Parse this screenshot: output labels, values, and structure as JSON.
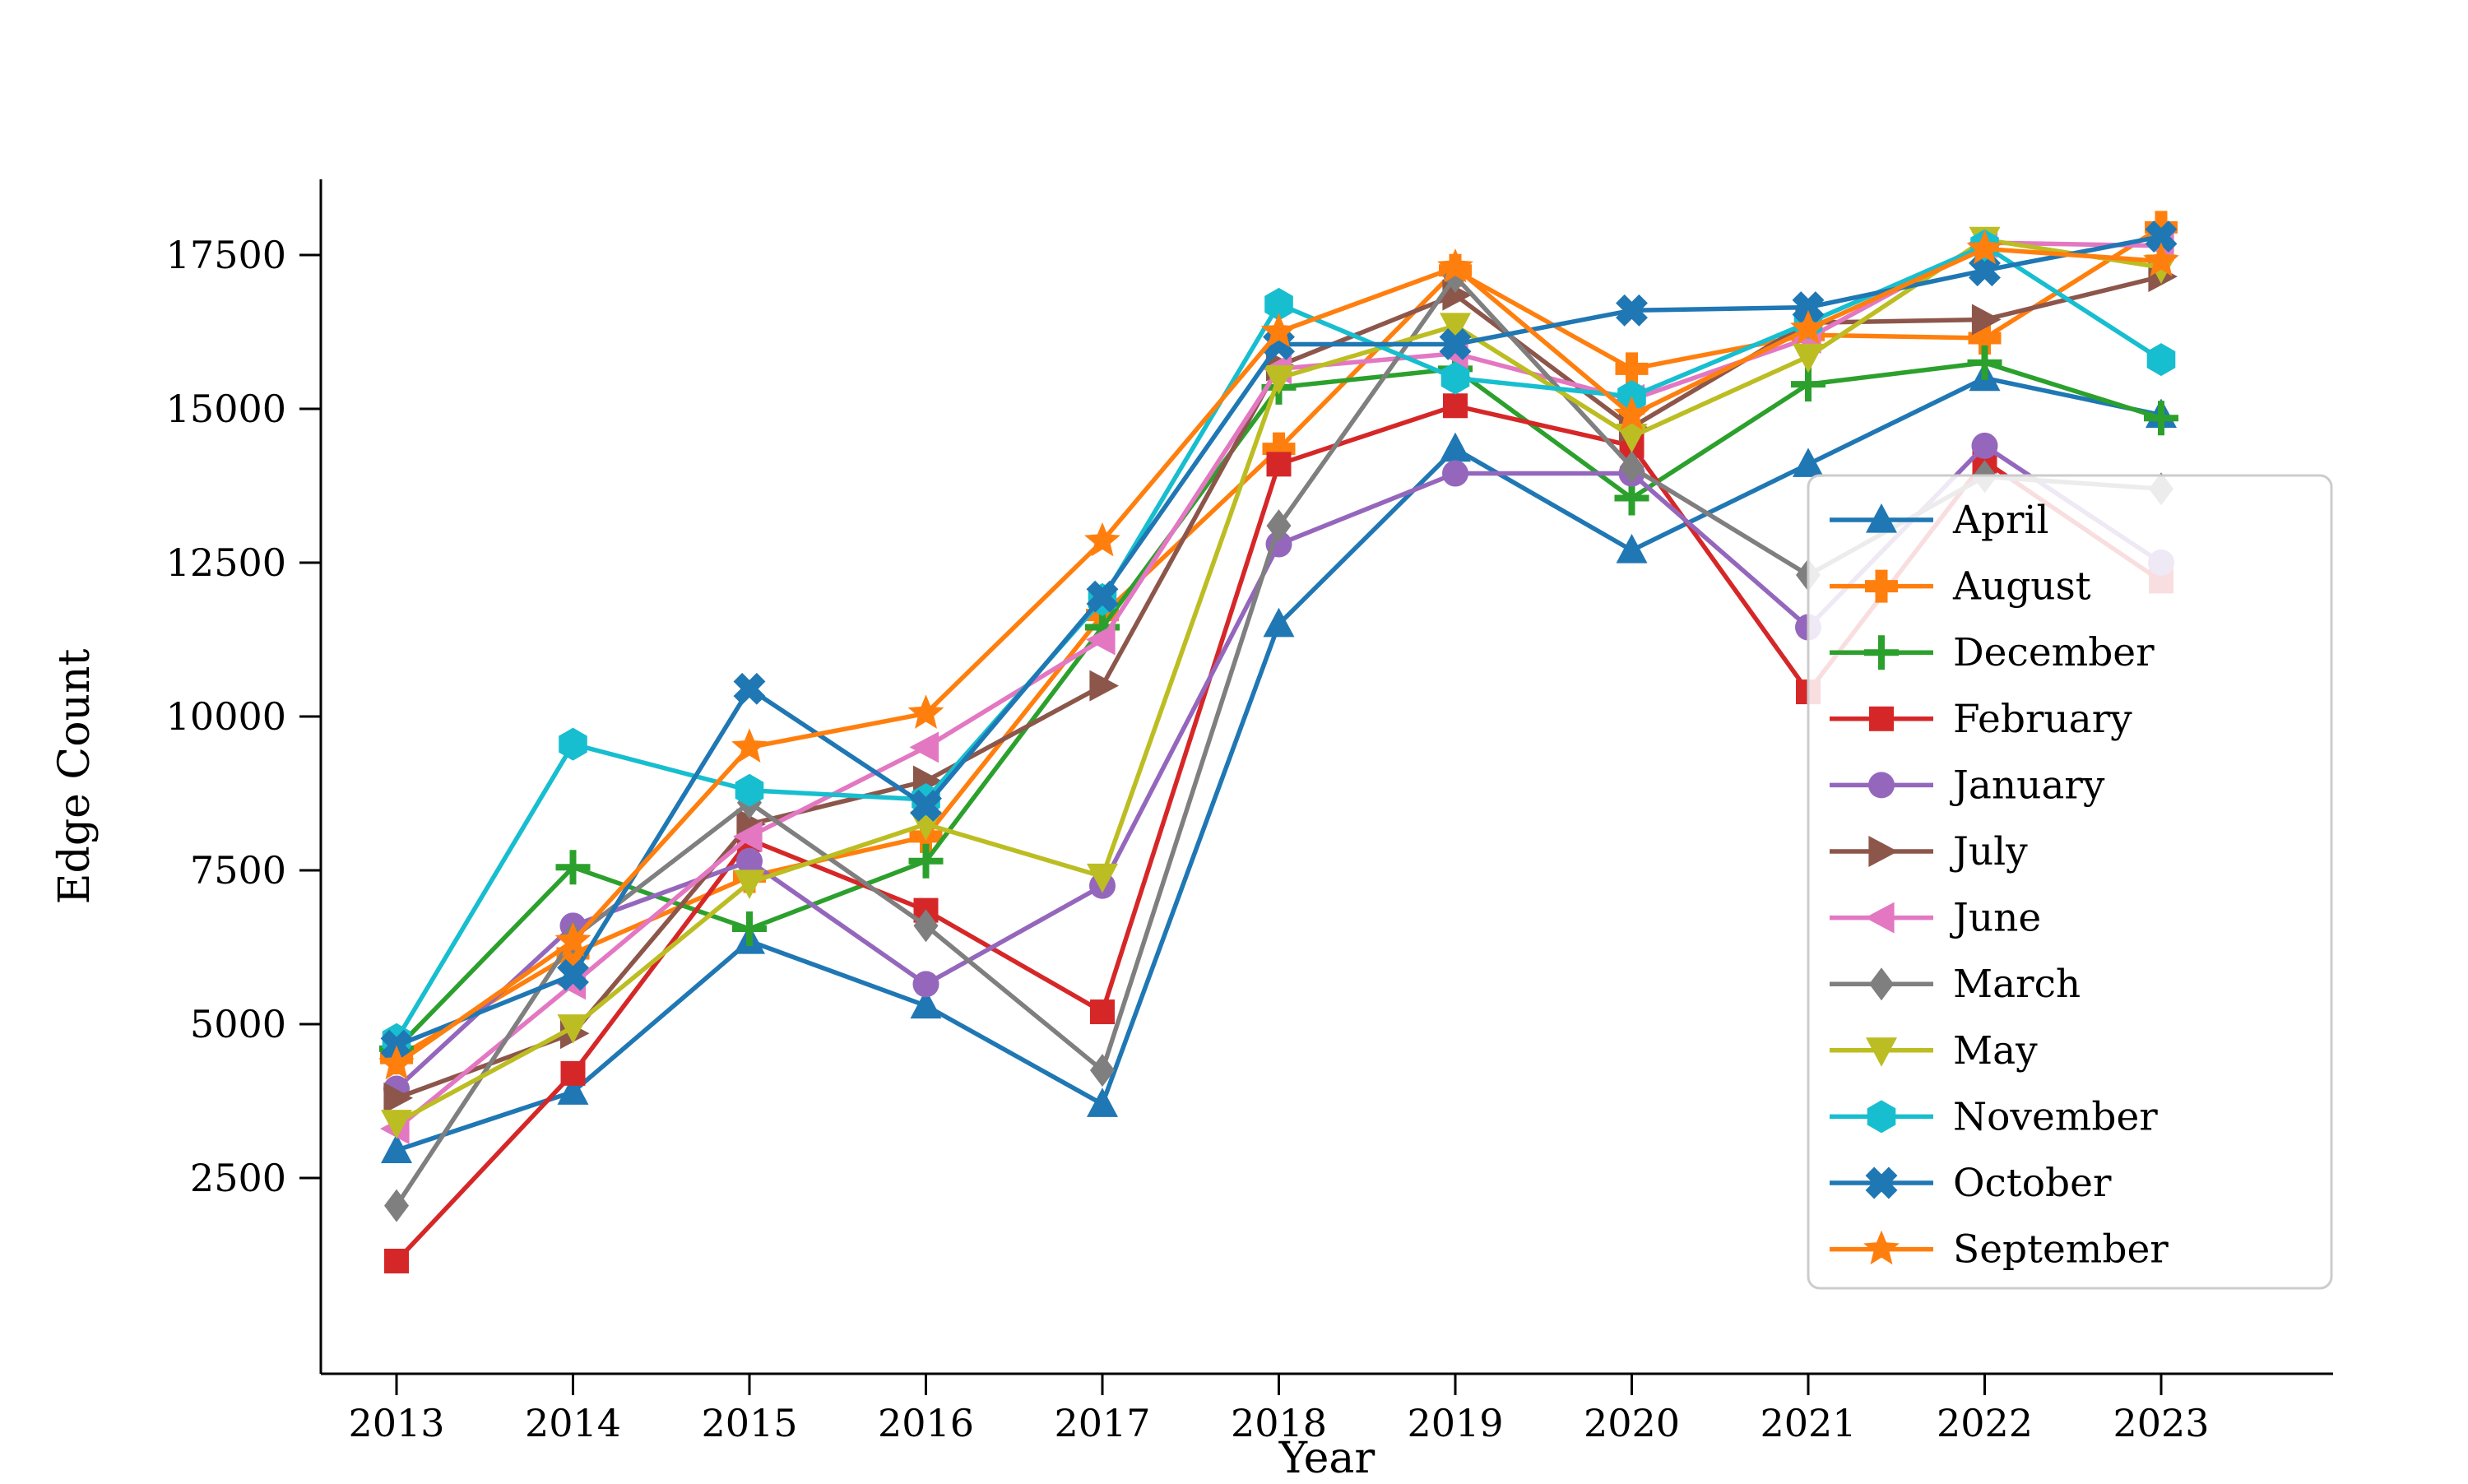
{
  "figure": {
    "background": "#ffffff",
    "xlabel": "Year",
    "ylabel": "Edge Count"
  },
  "chart_data": {
    "type": "line",
    "title": "",
    "xlabel": "Year",
    "ylabel": "Edge Count",
    "x": [
      2013,
      2014,
      2015,
      2016,
      2017,
      2018,
      2019,
      2020,
      2021,
      2022,
      2023
    ],
    "yticks": [
      2500,
      5000,
      7500,
      10000,
      12500,
      15000,
      17500
    ],
    "ylim": [
      -700,
      18800
    ],
    "grid": false,
    "legend_position": "center-right",
    "spines": {
      "top": false,
      "right": false,
      "left": true,
      "bottom": true
    },
    "series": [
      {
        "name": "April",
        "color": "#1f77b4",
        "marker": "triangle_up",
        "values": [
          2950,
          3900,
          6350,
          5300,
          3700,
          11500,
          14350,
          12700,
          14100,
          15500,
          14900
        ]
      },
      {
        "name": "August",
        "color": "#ff7f0e",
        "marker": "plus_filled",
        "values": [
          4450,
          6150,
          7400,
          8050,
          11650,
          14350,
          17250,
          15650,
          16200,
          16150,
          17950
        ]
      },
      {
        "name": "December",
        "color": "#2ca02c",
        "marker": "plus_thin",
        "values": [
          4600,
          7550,
          6550,
          7650,
          11450,
          15350,
          15650,
          13550,
          15400,
          15750,
          14850
        ]
      },
      {
        "name": "February",
        "color": "#d62728",
        "marker": "square",
        "values": [
          1150,
          4200,
          8000,
          6850,
          5200,
          14100,
          15050,
          14400,
          10400,
          14150,
          12200
        ]
      },
      {
        "name": "January",
        "color": "#9467bd",
        "marker": "circle",
        "values": [
          3950,
          6600,
          7650,
          5650,
          7250,
          12800,
          13950,
          13950,
          11450,
          14400,
          12500
        ]
      },
      {
        "name": "July",
        "color": "#8c564b",
        "marker": "triangle_right",
        "values": [
          3800,
          4850,
          8250,
          8950,
          10500,
          15700,
          16850,
          14700,
          16400,
          16450,
          17150
        ]
      },
      {
        "name": "June",
        "color": "#e377c2",
        "marker": "triangle_left",
        "values": [
          3300,
          5650,
          8050,
          9500,
          11250,
          15650,
          15900,
          15150,
          16150,
          17700,
          17650
        ]
      },
      {
        "name": "March",
        "color": "#7f7f7f",
        "marker": "diamond",
        "values": [
          2050,
          6400,
          8600,
          6600,
          4250,
          13100,
          17150,
          14050,
          12300,
          13900,
          13700
        ]
      },
      {
        "name": "May",
        "color": "#bcbd22",
        "marker": "triangle_down",
        "values": [
          3400,
          4950,
          7300,
          8250,
          7400,
          15500,
          16350,
          14550,
          15850,
          17750,
          17300
        ]
      },
      {
        "name": "November",
        "color": "#17becf",
        "marker": "hexagon",
        "values": [
          4750,
          9550,
          8800,
          8650,
          11900,
          16700,
          15500,
          15200,
          16400,
          17650,
          15800
        ]
      },
      {
        "name": "October",
        "color": "#1f77b4",
        "marker": "x_filled",
        "values": [
          4650,
          5800,
          10450,
          8550,
          11950,
          16050,
          16050,
          16600,
          16650,
          17250,
          17800
        ]
      },
      {
        "name": "September",
        "color": "#ff7f0e",
        "marker": "star",
        "values": [
          4350,
          6350,
          9500,
          10050,
          12850,
          16250,
          17300,
          14900,
          16300,
          17600,
          17400
        ]
      }
    ]
  }
}
